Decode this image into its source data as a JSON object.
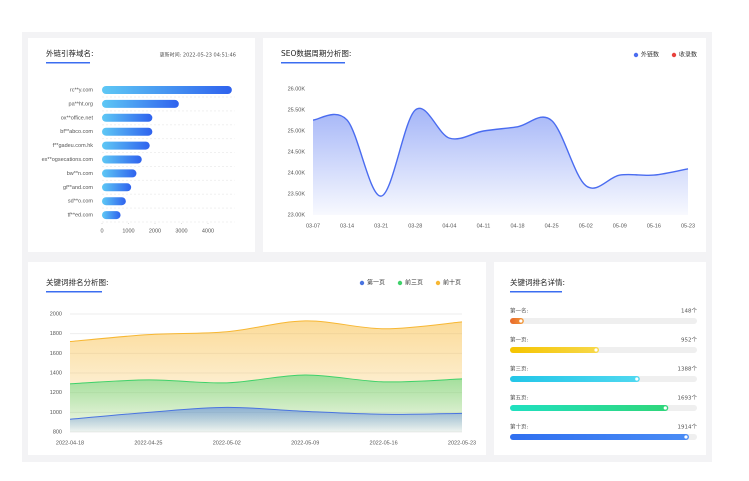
{
  "chart_data": [
    {
      "type": "hbar",
      "title": "外链引荐域名:",
      "subtitle": "更新时间: 2022-05-23 04:51:46",
      "categories": [
        "rc**y.com",
        "pa**ht.org",
        "ox**office.net",
        "bf**abco.com",
        "f**gadeu.com.hk",
        "ex**ogsecations.com",
        "bw**n.com",
        "gf**and.com",
        "sd**o.com",
        "tf**ed.com"
      ],
      "values": [
        4900,
        2900,
        1900,
        1900,
        1800,
        1500,
        1300,
        1100,
        900,
        700
      ],
      "color": "#3b6df0",
      "xlim": [
        0,
        5000
      ],
      "xticks": [
        0,
        1000,
        2000,
        3000,
        4000
      ]
    },
    {
      "type": "line",
      "title": "SEO数据周期分析图:",
      "categories": [
        "03-07",
        "03-14",
        "03-21",
        "03-28",
        "04-04",
        "04-11",
        "04-18",
        "04-25",
        "05-02",
        "05-09",
        "05-16",
        "05-23"
      ],
      "series": [
        {
          "name": "外链数",
          "color": "#4a6cf0",
          "values": [
            25260,
            25260,
            23450,
            25500,
            24830,
            25000,
            25100,
            25250,
            23700,
            23950,
            23950,
            24100
          ]
        },
        {
          "name": "收录数",
          "color": "#e8413c",
          "values": [
            null,
            null,
            null,
            null,
            null,
            null,
            null,
            null,
            null,
            null,
            null,
            null
          ]
        }
      ],
      "ylim": [
        23000,
        26000
      ],
      "yticks": [
        {
          "value": 23000,
          "label": "23.00K"
        },
        {
          "value": 23500,
          "label": "23.50K"
        },
        {
          "value": 24000,
          "label": "24.00K"
        },
        {
          "value": 24500,
          "label": "24.50K"
        },
        {
          "value": 25000,
          "label": "25.00K"
        },
        {
          "value": 25500,
          "label": "25.50K"
        },
        {
          "value": 26000,
          "label": "26.00K"
        }
      ]
    },
    {
      "type": "area",
      "title": "关键词排名分析图:",
      "categories": [
        "2022-04-18",
        "2022-04-25",
        "2022-05-02",
        "2022-05-09",
        "2022-05-16",
        "2022-05-23"
      ],
      "series": [
        {
          "name": "第一页",
          "color": "#4a74e0",
          "values": [
            930,
            1000,
            1050,
            1010,
            980,
            990
          ]
        },
        {
          "name": "前三页",
          "color": "#3fd16a",
          "values": [
            1290,
            1330,
            1300,
            1380,
            1310,
            1340
          ]
        },
        {
          "name": "前十页",
          "color": "#f7b733",
          "values": [
            1720,
            1790,
            1820,
            1930,
            1850,
            1920
          ]
        }
      ],
      "ylim": [
        800,
        2000
      ],
      "yticks": [
        800,
        1000,
        1200,
        1400,
        1600,
        1800,
        2000
      ],
      "grid": true
    },
    {
      "type": "progress",
      "title": "关键词排名详情:",
      "categories": [
        "第一名:",
        "第一页:",
        "第三页:",
        "第五页:",
        "第十页:"
      ],
      "values": [
        148,
        952,
        1388,
        1693,
        1914
      ],
      "value_labels": [
        "148个",
        "952个",
        "1388个",
        "1693个",
        "1914个"
      ],
      "colors": [
        [
          "#e8682c",
          "#f29a38"
        ],
        [
          "#f5c400",
          "#f7d84a"
        ],
        [
          "#23c6e8",
          "#4fd8f0"
        ],
        [
          "#20e0c0",
          "#2fd67a"
        ],
        [
          "#2f6ff0",
          "#4a8cf5"
        ]
      ],
      "xlim": [
        0,
        2000
      ]
    }
  ]
}
